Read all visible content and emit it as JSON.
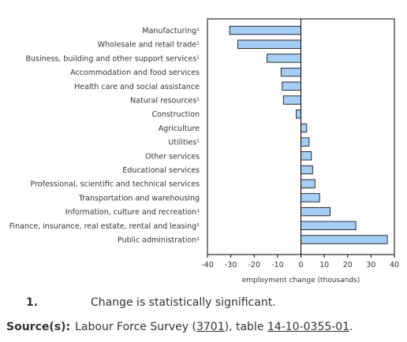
{
  "chart_data": {
    "type": "bar",
    "orientation": "horizontal",
    "categories": [
      "Manufacturing¹",
      "Wholesale and retail trade¹",
      "Business, building and other support services¹",
      "Accommodation and food services",
      "Health care and social assistance",
      "Natural resources¹",
      "Construction",
      "Agriculture",
      "Utilities¹",
      "Other services",
      "Educational services",
      "Professional, scientific and technical services",
      "Transportation and warehousing",
      "Information, culture and recreation¹",
      "Finance, insurance, real estate, rental and leasing¹",
      "Public administration¹"
    ],
    "values": [
      -30.5,
      -27,
      -14.5,
      -8.5,
      -8,
      -7.5,
      -2,
      2.5,
      3.5,
      4.5,
      5,
      6,
      8,
      12.5,
      23.5,
      37
    ],
    "xlabel": "employment change (thousands)",
    "ylabel": "",
    "xlim": [
      -40,
      40
    ],
    "xticks": [
      "-40",
      "-30",
      "-20",
      "-10",
      "0",
      "10",
      "20",
      "30",
      "40"
    ],
    "bar_color": "#a6cdf3",
    "bar_edge_color": "#000000",
    "grid": false
  },
  "footnote": {
    "number": "1.",
    "text": "Change is statistically significant."
  },
  "source": {
    "label": "Source(s):",
    "text_before": "Labour Force Survey (",
    "link1": "3701",
    "text_middle": "), table ",
    "link2": "14-10-0355-01",
    "text_after": "."
  }
}
